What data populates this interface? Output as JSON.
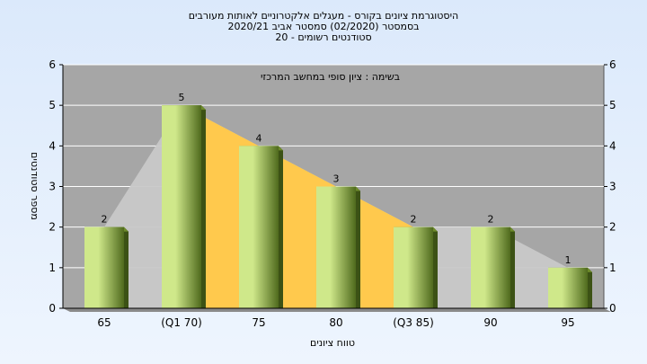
{
  "chart_data": {
    "type": "bar",
    "title_lines": [
      "היסטוגרמת ציונים בקורס - מעגלים אלקטרוניים לאותות מעורבים",
      "בסמסטר  (02/2020)  סמסטר אביב 2020/21",
      "סטודנטים רשומים - 20"
    ],
    "annotation": "בשימה : ציון סופי במחשב המרכזי",
    "categories": [
      "65",
      "(Q1 70)",
      "75",
      "80",
      "(Q3 85)",
      "90",
      "95"
    ],
    "values": [
      2,
      5,
      4,
      3,
      2,
      2,
      1
    ],
    "ylabel": "מספר סטודנטים",
    "xlabel": "טווח ציונים",
    "ylim": [
      0,
      6
    ],
    "yticks": [
      0,
      1,
      2,
      3,
      4,
      5,
      6
    ],
    "grid": true,
    "highlight_range": [
      "(Q1 70)",
      "(Q3 85)"
    ],
    "colors": {
      "bar_light": "#cfe88a",
      "bar_dark": "#4f6a1d",
      "quartile_fill": "#ffc94d",
      "outline_fill": "#c8c8c8",
      "plot_bg": "#a6a6a6",
      "grid": "#ffffff"
    }
  }
}
